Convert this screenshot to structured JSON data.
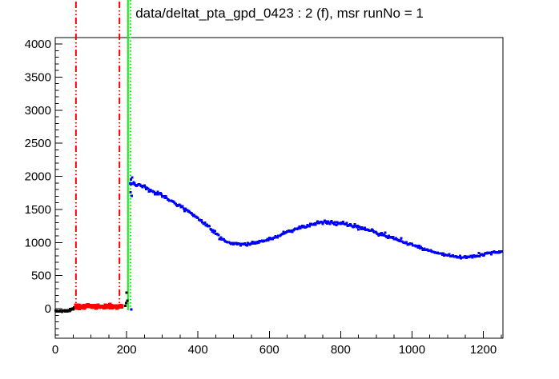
{
  "title": "data/deltat_pta_gpd_0423 : 2 (f), msr runNo = 1",
  "chart_data": {
    "type": "scatter",
    "title": "data/deltat_pta_gpd_0423 : 2 (f), msr runNo = 1",
    "background": "#ffffff",
    "grid": "off",
    "legend": "none",
    "x_axis": {
      "min": 0,
      "max": 1255,
      "major_tick_values": [
        0,
        200,
        400,
        600,
        800,
        1000,
        1200
      ],
      "major_tick_labels": [
        "0",
        "200",
        "400",
        "600",
        "800",
        "1000",
        "1200"
      ],
      "minor_tick_step": 50
    },
    "y_axis": {
      "min": -447,
      "max": 4097,
      "major_tick_values": [
        0,
        500,
        1000,
        1500,
        2000,
        2500,
        3000,
        3500,
        4000
      ],
      "major_tick_labels": [
        "0",
        "500",
        "1000",
        "1500",
        "2000",
        "2500",
        "3000",
        "3500",
        "4000"
      ],
      "minor_tick_step": 100
    },
    "vertical_lines": [
      {
        "name": "background-range-start-line",
        "x": 58,
        "color": "#ff0000",
        "style": "dashdot"
      },
      {
        "name": "background-range-end-line",
        "x": 180,
        "color": "#ff0000",
        "style": "dashdot"
      },
      {
        "name": "t0-line",
        "x": 204,
        "color": "#00ff00",
        "style": "solid"
      },
      {
        "name": "data-range-start-line",
        "x": 211,
        "color": "#00ff00",
        "style": "dotted"
      }
    ],
    "series": [
      {
        "name": "pre-t0-histogram",
        "color": "#000000",
        "marker_size": 3,
        "sample_step": 1.2,
        "noise_sigma": 7,
        "anchors": [
          [
            1,
            -35
          ],
          [
            25,
            -35
          ],
          [
            38,
            -30
          ],
          [
            45,
            -8
          ],
          [
            52,
            10
          ],
          [
            57,
            15
          ]
        ],
        "extra_points": [
          [
            196,
            45
          ],
          [
            199,
            85
          ],
          [
            202,
            120
          ],
          [
            200,
            240
          ]
        ]
      },
      {
        "name": "background-window-histogram",
        "color": "#ff0000",
        "marker_size": 4,
        "sample_step": 1.2,
        "noise_sigma": 13,
        "anchors": [
          [
            57,
            30
          ],
          [
            90,
            30
          ],
          [
            120,
            32
          ],
          [
            150,
            30
          ],
          [
            188,
            30
          ]
        ],
        "extra_points": []
      },
      {
        "name": "muon-decay-histogram",
        "color": "#0000ff",
        "marker_size": 3,
        "sample_step": 2.5,
        "poisson_scale": 0.33,
        "anchors": [
          [
            210,
            1870
          ],
          [
            218,
            1895
          ],
          [
            228,
            1885
          ],
          [
            240,
            1860
          ],
          [
            252,
            1830
          ],
          [
            265,
            1790
          ],
          [
            280,
            1755
          ],
          [
            294,
            1730
          ],
          [
            310,
            1675
          ],
          [
            325,
            1625
          ],
          [
            340,
            1580
          ],
          [
            355,
            1535
          ],
          [
            370,
            1480
          ],
          [
            385,
            1425
          ],
          [
            400,
            1370
          ],
          [
            415,
            1300
          ],
          [
            430,
            1230
          ],
          [
            445,
            1160
          ],
          [
            460,
            1085
          ],
          [
            474,
            1030
          ],
          [
            490,
            995
          ],
          [
            510,
            975
          ],
          [
            530,
            975
          ],
          [
            550,
            985
          ],
          [
            575,
            1010
          ],
          [
            600,
            1050
          ],
          [
            625,
            1100
          ],
          [
            650,
            1155
          ],
          [
            675,
            1205
          ],
          [
            700,
            1245
          ],
          [
            725,
            1280
          ],
          [
            750,
            1300
          ],
          [
            775,
            1305
          ],
          [
            800,
            1295
          ],
          [
            825,
            1270
          ],
          [
            850,
            1235
          ],
          [
            875,
            1190
          ],
          [
            900,
            1150
          ],
          [
            925,
            1105
          ],
          [
            950,
            1055
          ],
          [
            975,
            1010
          ],
          [
            1000,
            965
          ],
          [
            1025,
            920
          ],
          [
            1050,
            875
          ],
          [
            1075,
            840
          ],
          [
            1100,
            805
          ],
          [
            1125,
            785
          ],
          [
            1150,
            775
          ],
          [
            1175,
            790
          ],
          [
            1200,
            820
          ],
          [
            1225,
            845
          ],
          [
            1252,
            865
          ]
        ],
        "extra_points": [
          [
            213,
            -10
          ],
          [
            211,
            1760
          ],
          [
            212,
            1950
          ],
          [
            214,
            1705
          ],
          [
            216,
            1985
          ]
        ]
      }
    ]
  }
}
